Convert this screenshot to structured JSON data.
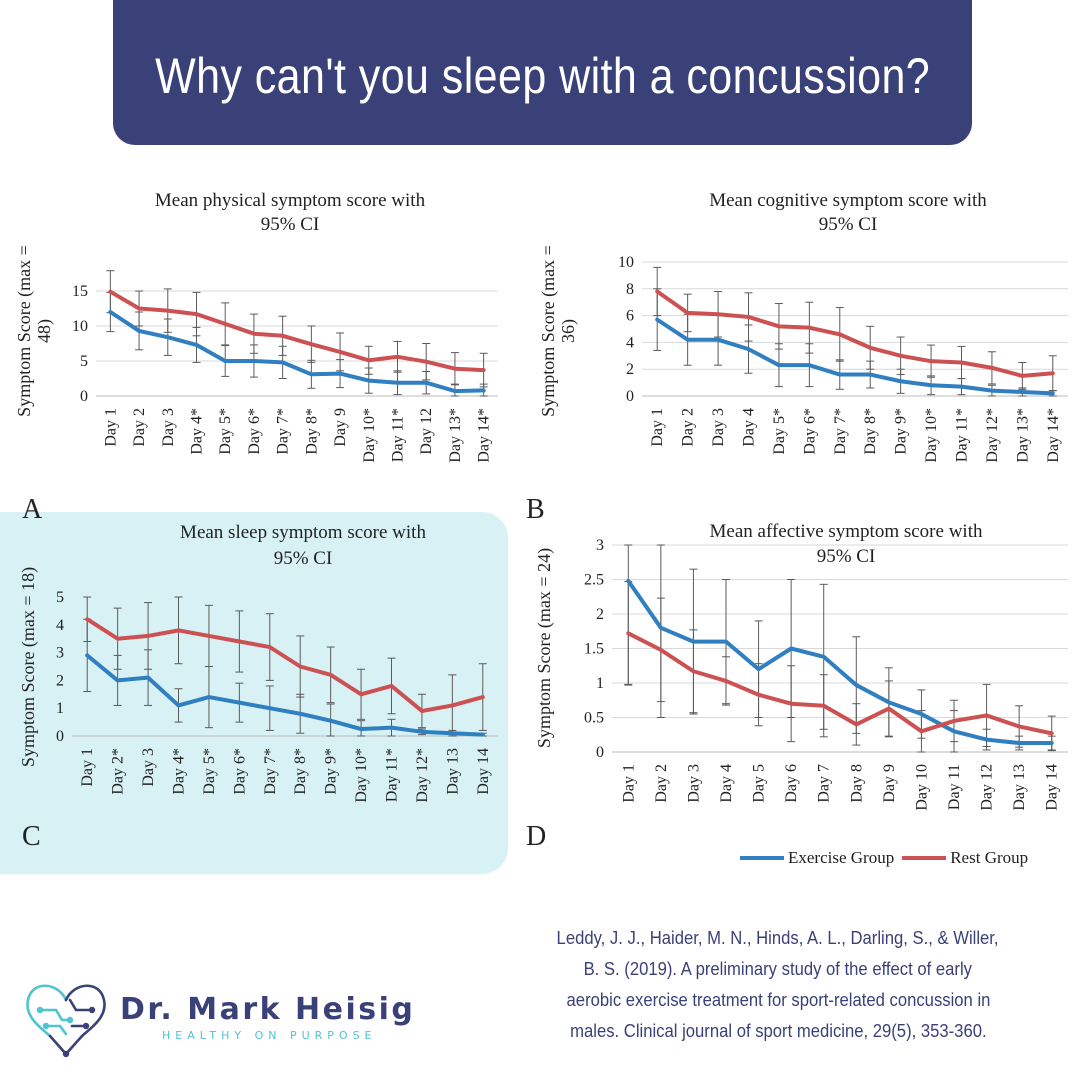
{
  "header": {
    "title": "Why can't you sleep with a concussion?"
  },
  "colors": {
    "banner": "#3a4178",
    "exercise": "#2f7fc1",
    "rest": "#cc5152",
    "highlight": "#d7f1f5",
    "logo_accent": "#4fc3cf"
  },
  "chart_data": [
    {
      "id": "A",
      "type": "line",
      "letter": "A",
      "title": [
        "Mean physical symptom score with",
        "95% CI"
      ],
      "ylabel": [
        "Symptom Score (max =",
        "48)"
      ],
      "ylim": [
        0,
        18
      ],
      "yticks": [
        0,
        5,
        10,
        15
      ],
      "categories": [
        "Day 1",
        "Day 2",
        "Day 3",
        "Day 4*",
        "Day 5*",
        "Day 6*",
        "Day 7*",
        "Day 8*",
        "Day 9",
        "Day 10*",
        "Day 11*",
        "Day 12",
        "Day 13*",
        "Day 14*"
      ],
      "series": [
        {
          "name": "Exercise Group",
          "values": [
            12,
            9.3,
            8.4,
            7.3,
            5,
            5,
            4.8,
            3.1,
            3.2,
            2.2,
            1.9,
            1.9,
            0.7,
            0.8
          ],
          "err": [
            2.8,
            2.7,
            2.6,
            2.5,
            2.2,
            2.3,
            2.3,
            2,
            2,
            1.8,
            1.7,
            1.6,
            1,
            0.9
          ]
        },
        {
          "name": "Rest Group",
          "values": [
            14.9,
            12.5,
            12.2,
            11.7,
            10.3,
            8.9,
            8.6,
            7.4,
            6.3,
            5.1,
            5.6,
            4.9,
            3.9,
            3.7
          ],
          "err": [
            3,
            2.5,
            3.1,
            3.1,
            3,
            2.8,
            2.8,
            2.6,
            2.7,
            2,
            2.2,
            2.6,
            2.3,
            2.4
          ]
        }
      ]
    },
    {
      "id": "B",
      "type": "line",
      "letter": "B",
      "title": [
        "Mean cognitive symptom score with",
        "95% CI"
      ],
      "ylabel": [
        "Symptom Score (max =",
        "36)"
      ],
      "ylim": [
        0,
        10
      ],
      "yticks": [
        0,
        2,
        4,
        6,
        8,
        10
      ],
      "categories": [
        "Day 1",
        "Day 2",
        "Day 3",
        "Day 4",
        "Day 5*",
        "Day 6*",
        "Day 7*",
        "Day 8*",
        "Day 9*",
        "Day 10*",
        "Day 11*",
        "Day 12*",
        "Day 13*",
        "Day 14*"
      ],
      "series": [
        {
          "name": "Exercise Group",
          "values": [
            5.7,
            4.2,
            4.2,
            3.5,
            2.3,
            2.3,
            1.6,
            1.6,
            1.1,
            0.8,
            0.7,
            0.4,
            0.3,
            0.2
          ],
          "err": [
            2.3,
            1.9,
            1.9,
            1.8,
            1.6,
            1.6,
            1.1,
            1,
            0.9,
            0.7,
            0.6,
            0.4,
            0.3,
            0.2
          ]
        },
        {
          "name": "Rest Group",
          "values": [
            7.8,
            6.2,
            6.1,
            5.9,
            5.2,
            5.1,
            4.6,
            3.6,
            3,
            2.6,
            2.5,
            2.1,
            1.5,
            1.7
          ],
          "err": [
            1.8,
            1.4,
            1.7,
            1.8,
            1.7,
            1.9,
            2,
            1.6,
            1.4,
            1.2,
            1.2,
            1.2,
            1,
            1.3
          ]
        }
      ]
    },
    {
      "id": "C",
      "type": "line",
      "letter": "C",
      "title": [
        "Mean sleep symptom score with",
        "95% CI"
      ],
      "ylabel": [
        "Symptom Score (max = 18)"
      ],
      "ylim": [
        0,
        5
      ],
      "yticks": [
        0,
        1,
        2,
        3,
        4,
        5
      ],
      "categories": [
        "Day 1",
        "Day 2*",
        "Day 3",
        "Day 4*",
        "Day 5*",
        "Day 6*",
        "Day 7*",
        "Day 8*",
        "Day 9*",
        "Day 10*",
        "Day 11*",
        "Day 12*",
        "Day 13",
        "Day 14"
      ],
      "series": [
        {
          "name": "Exercise Group",
          "values": [
            2.9,
            2,
            2.1,
            1.1,
            1.4,
            1.2,
            1,
            0.8,
            0.55,
            0.25,
            0.3,
            0.15,
            0.1,
            0.05
          ],
          "err": [
            1.3,
            0.9,
            1,
            0.6,
            1.1,
            0.7,
            0.8,
            0.7,
            0.6,
            0.3,
            0.3,
            0.1,
            0.1,
            0.05
          ]
        },
        {
          "name": "Rest Group",
          "values": [
            4.2,
            3.5,
            3.6,
            3.8,
            3.6,
            3.4,
            3.2,
            2.5,
            2.2,
            1.5,
            1.8,
            0.9,
            1.1,
            1.4
          ],
          "err": [
            0.8,
            1.1,
            1.2,
            1.2,
            1.1,
            1.1,
            1.2,
            1.1,
            1,
            0.9,
            1,
            0.6,
            1.1,
            1.2
          ]
        }
      ]
    },
    {
      "id": "D",
      "type": "line",
      "letter": "D",
      "title": [
        "Mean affective symptom score with",
        "95% CI"
      ],
      "ylabel": [
        "Symptom Score (max = 24)"
      ],
      "ylim": [
        0,
        3
      ],
      "yticks": [
        0,
        0.5,
        1,
        1.5,
        2,
        2.5,
        3
      ],
      "categories": [
        "Day 1",
        "Day 2",
        "Day 3",
        "Day 4",
        "Day 5",
        "Day 6",
        "Day 7",
        "Day 8",
        "Day 9",
        "Day 10",
        "Day 11",
        "Day 12",
        "Day 13",
        "Day 14"
      ],
      "series": [
        {
          "name": "Exercise Group",
          "values": [
            2.48,
            1.8,
            1.6,
            1.6,
            1.2,
            1.5,
            1.38,
            0.97,
            0.72,
            0.55,
            0.3,
            0.18,
            0.13,
            0.13
          ],
          "err": [
            1.5,
            1.3,
            1.05,
            0.9,
            0.7,
            1,
            1.05,
            0.7,
            0.5,
            0.35,
            0.3,
            0.15,
            0.1,
            0.1
          ]
        },
        {
          "name": "Rest Group",
          "values": [
            1.72,
            1.48,
            1.17,
            1.03,
            0.83,
            0.7,
            0.67,
            0.4,
            0.63,
            0.3,
            0.45,
            0.53,
            0.37,
            0.27
          ],
          "err": [
            0.75,
            0.75,
            0.6,
            0.35,
            0.45,
            0.55,
            0.45,
            0.3,
            0.4,
            0.3,
            0.3,
            0.45,
            0.3,
            0.25
          ]
        }
      ]
    }
  ],
  "legend": {
    "exercise_label": "Exercise Group",
    "rest_label": "Rest Group"
  },
  "citation": [
    "Leddy, J. J., Haider, M. N., Hinds, A. L., Darling, S., & Willer,",
    "B. S. (2019). A preliminary study of the effect of early",
    "aerobic exercise treatment for sport-related concussion in",
    "males. Clinical journal of sport medicine, 29(5), 353-360."
  ],
  "logo": {
    "name": "Dr. Mark Heisig",
    "tagline": "HEALTHY ON PURPOSE",
    "icon": "heart-circuit-logo-icon"
  }
}
